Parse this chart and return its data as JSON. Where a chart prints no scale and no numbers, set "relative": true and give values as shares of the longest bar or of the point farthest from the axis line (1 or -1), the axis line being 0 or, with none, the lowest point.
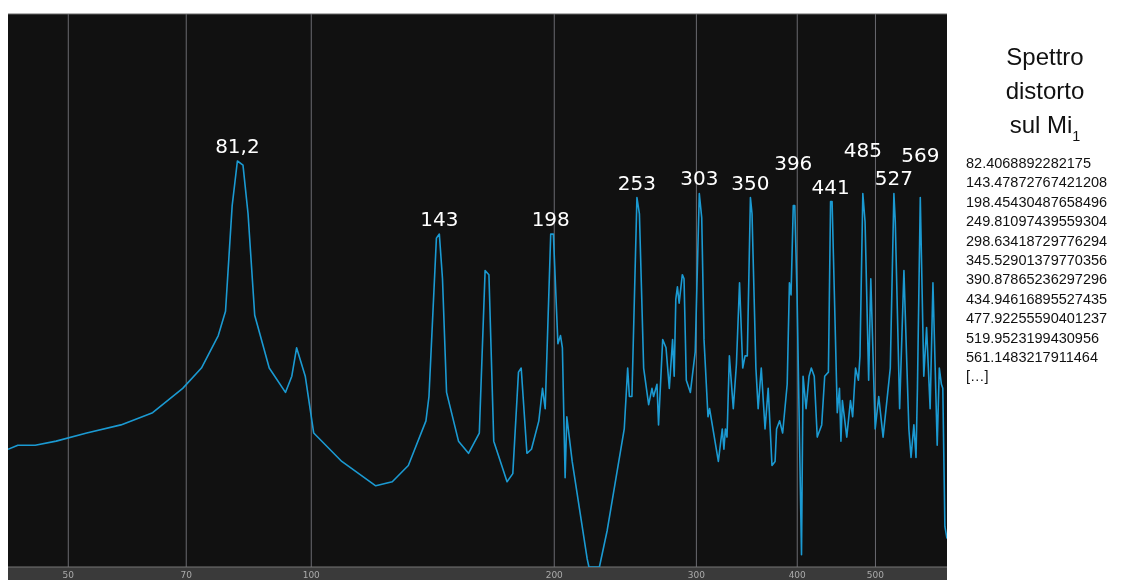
{
  "chart_data": {
    "type": "line",
    "title": "Spettro distorto sul Mi$_{1}$",
    "relative": true,
    "log": "x",
    "grid": "x",
    "marker": "none",
    "line_style": "solid",
    "xlim": [
      42.1,
      613.2
    ],
    "xticks": [
      50,
      70,
      100,
      200,
      300,
      400,
      500
    ],
    "series": [
      {
        "color": "#1b9ad2",
        "x": [
          42.1,
          43.3,
          45.5,
          48.3,
          52.7,
          58.1,
          63.6,
          69.3,
          73.1,
          76.7,
          78.3,
          79.8,
          81.0,
          82.3,
          83.5,
          85.1,
          88.7,
          92.9,
          94.6,
          95.9,
          98.3,
          100.7,
          109.1,
          120.2,
          126.0,
          131.9,
          138.7,
          139.9,
          142.9,
          144.1,
          145.4,
          147.1,
          152.2,
          156.6,
          161.5,
          164.2,
          166.0,
          168.3,
          174.8,
          177.7,
          180.6,
          182.0,
          185.0,
          187.4,
          191.4,
          193.4,
          194.9,
          198.0,
          199.5,
          202.1,
          203.6,
          204.7,
          206.3,
          207.3,
          210.5,
          219.7,
          220.8,
          227.5,
          232.6,
          244.2,
          246.6,
          247.8,
          249.6,
          253.2,
          255.0,
          258.1,
          261.8,
          264.3,
          265.5,
          268.1,
          269.3,
          272.5,
          275.1,
          277.7,
          280.3,
          281.6,
          282.9,
          284.2,
          285.6,
          288.2,
          289.6,
          291.5,
          294.9,
          299.0,
          302.5,
          304.6,
          306.6,
          310.1,
          311.5,
          319.4,
          323.0,
          324.5,
          325.9,
          327.4,
          329.6,
          333.3,
          336.3,
          339.3,
          342.4,
          344.7,
          346.9,
          350.0,
          351.6,
          355.5,
          357.8,
          361.0,
          364.9,
          368.2,
          372.2,
          375.5,
          377.1,
          380.4,
          383.7,
          388.7,
          391.2,
          393.0,
          395.5,
          397.2,
          399.8,
          404.9,
          406.7,
          410.2,
          413.7,
          416.4,
          419.9,
          423.5,
          428.9,
          432.6,
          437.2,
          439.9,
          441.8,
          444.6,
          448.4,
          451.2,
          453.1,
          455.0,
          460.7,
          465.6,
          468.5,
          472.4,
          476.3,
          478.4,
          482.3,
          485.4,
          490.4,
          493.4,
          499.6,
          504.7,
          511.0,
          521.6,
          527.0,
          529.1,
          535.7,
          542.3,
          545.6,
          550.0,
          553.4,
          557.9,
          561.3,
          563.6,
          568.2,
          573.9,
          578.5,
          584.4,
          589.1,
          596.3,
          599.9,
          603.5,
          605.9,
          609.5,
          613.2
        ],
        "values": [
          0.29,
          0.3,
          0.3,
          0.31,
          0.33,
          0.35,
          0.38,
          0.44,
          0.49,
          0.57,
          0.63,
          0.89,
          1.0,
          0.99,
          0.87,
          0.62,
          0.49,
          0.43,
          0.47,
          0.54,
          0.47,
          0.33,
          0.26,
          0.2,
          0.21,
          0.25,
          0.36,
          0.42,
          0.81,
          0.82,
          0.71,
          0.43,
          0.31,
          0.28,
          0.33,
          0.73,
          0.72,
          0.31,
          0.21,
          0.23,
          0.48,
          0.49,
          0.28,
          0.29,
          0.36,
          0.44,
          0.39,
          0.82,
          0.82,
          0.55,
          0.57,
          0.54,
          0.22,
          0.37,
          0.26,
          0.02,
          0,
          0,
          0.09,
          0.34,
          0.49,
          0.42,
          0.42,
          0.91,
          0.87,
          0.49,
          0.4,
          0.44,
          0.42,
          0.45,
          0.35,
          0.56,
          0.54,
          0.44,
          0.56,
          0.47,
          0.66,
          0.69,
          0.65,
          0.72,
          0.71,
          0.46,
          0.43,
          0.53,
          0.92,
          0.86,
          0.56,
          0.37,
          0.39,
          0.26,
          0.34,
          0.29,
          0.34,
          0.32,
          0.52,
          0.39,
          0.5,
          0.7,
          0.49,
          0.52,
          0.52,
          0.91,
          0.87,
          0.49,
          0.39,
          0.49,
          0.34,
          0.44,
          0.25,
          0.26,
          0.34,
          0.36,
          0.33,
          0.45,
          0.7,
          0.67,
          0.89,
          0.89,
          0.67,
          0.03,
          0.47,
          0.39,
          0.47,
          0.49,
          0.47,
          0.32,
          0.35,
          0.47,
          0.48,
          0.9,
          0.9,
          0.68,
          0.38,
          0.44,
          0.31,
          0.41,
          0.32,
          0.41,
          0.37,
          0.49,
          0.46,
          0.52,
          0.92,
          0.85,
          0.46,
          0.71,
          0.34,
          0.42,
          0.32,
          0.49,
          0.92,
          0.85,
          0.39,
          0.73,
          0.56,
          0.34,
          0.27,
          0.35,
          0.27,
          0.44,
          0.91,
          0.47,
          0.59,
          0.39,
          0.7,
          0.3,
          0.49,
          0.45,
          0.44,
          0.1,
          0.07
        ]
      }
    ],
    "annotations": [
      {
        "text": "81,2",
        "x": 81.0,
        "y": 1.0
      },
      {
        "text": "143",
        "x": 144.1,
        "y": 0.82
      },
      {
        "text": "198",
        "x": 198.0,
        "y": 0.82
      },
      {
        "text": "253",
        "x": 253.2,
        "y": 0.91
      },
      {
        "text": "303",
        "x": 302.5,
        "y": 0.92
      },
      {
        "text": "350",
        "x": 350.0,
        "y": 0.91
      },
      {
        "text": "396",
        "x": 395.5,
        "y": 0.89
      },
      {
        "text": "441",
        "x": 439.9,
        "y": 0.9
      },
      {
        "text": "485",
        "x": 482.3,
        "y": 0.92
      },
      {
        "text": "527",
        "x": 527.0,
        "y": 0.92
      },
      {
        "text": "569",
        "x": 568.2,
        "y": 0.91
      },
      "82.4068892282175",
      "143.47872767421208",
      "198.45430487658496",
      "249.81097439559304",
      "298.63418729776294",
      "345.52901379770356",
      "390.87865236297296",
      "434.94616895527435",
      "477.92255590401237",
      "519.9523199430956",
      "561.1483217911464",
      "[…]"
    ]
  }
}
